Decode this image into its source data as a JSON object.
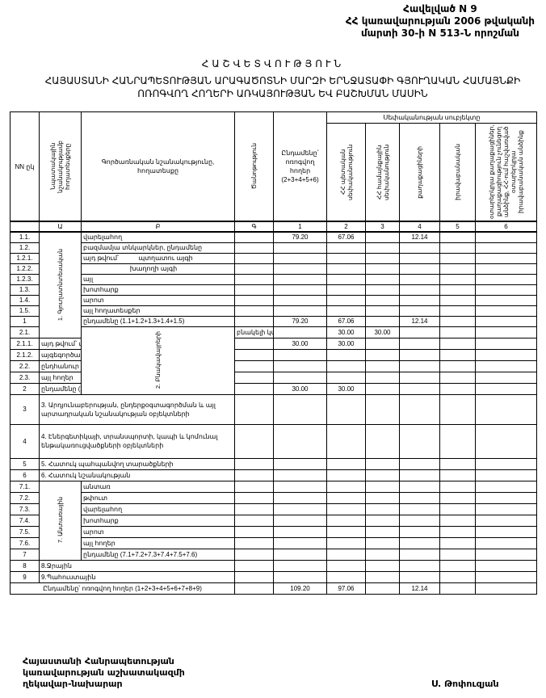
{
  "annex": {
    "line1": "Հավելված N 9",
    "line2": "ՀՀ կառավարության 2006 թվականի",
    "line3": "մարտի 30-ի N 513-Ն որոշման"
  },
  "title": "ՀԱՇՎԵՏՎՈՒԹՅՈՒՆ",
  "subtitle_line1": "ՀԱՅԱՍՏԱՆԻ ՀԱՆՐԱՊԵՏՈՒԹՅԱՆ ԱՐԱԳԱԾՈՏՆԻ ՄԱՐԶԻ ԵՐՆՋԱՏԱՓԻ ԳՅՈՒՂԱԿԱՆ ՀԱՄԱՅՆՔԻ",
  "subtitle_line2": "ՈՌՈԳՎՈՂ ՀՈՂԵՐԻ ԱՌԿԱՅՈՒԹՅԱՆ ԵՎ ԲԱՇԽՄԱՆ ՄԱՍԻՆ",
  "table": {
    "headers": {
      "nn": "NN ըկ",
      "purpose": "Նպատակային նշանակությամբ հողատեսքերը",
      "function": "Գործառնական նշանակությունը, հողատեսքը",
      "note": "Ծանոթություն",
      "total": "Ընդամենը՝ ոռոգվող հողեր (2+3+4+5+6)",
      "ownership": "Սեփականության սուբյեկտը",
      "c2": "ՀՀ պետական սեփականություն",
      "c3": "ՀՀ համայնքային սեփականություն",
      "c4": "քաղաքացիների",
      "c5": "իրավաբանական",
      "c6": "օտարերկրյա քաղաքացիներ, քաղաքացիություն չունեցող անձինք, ՀՀ-ում հաշվառված օտարերկրյա իրավաբանական անձինք"
    },
    "codes": [
      "",
      "Ա",
      "Բ",
      "Գ",
      "1",
      "2",
      "3",
      "4",
      "5",
      "6"
    ],
    "groups": {
      "g1": "1. Գյուղատնտեսական",
      "g2": "2. Բնակավայրերի",
      "g7": "7. Անտառային"
    },
    "rows": [
      {
        "num": "1.1.",
        "group": "g1",
        "span": 10,
        "label": "վարելահող",
        "v": [
          "79.20",
          "67.06",
          "",
          "12.14",
          "",
          ""
        ]
      },
      {
        "num": "1.2.",
        "label": "բազմամյա տնկարկներ, ընդամենը",
        "v": [
          "",
          "",
          "",
          "",
          "",
          ""
        ]
      },
      {
        "num": "1.2.1.",
        "label": "այդ թվում՝           պտղատու այգի",
        "v": [
          "",
          "",
          "",
          "",
          "",
          ""
        ]
      },
      {
        "num": "1.2.2.",
        "label": "                          խաղողի այգի",
        "v": [
          "",
          "",
          "",
          "",
          "",
          ""
        ]
      },
      {
        "num": "1.2.3.",
        "label": "այլ",
        "v": [
          "",
          "",
          "",
          "",
          "",
          ""
        ]
      },
      {
        "num": "1.3.",
        "label": "խոտհարք",
        "v": [
          "",
          "",
          "",
          "",
          "",
          ""
        ]
      },
      {
        "num": "1.4.",
        "label": "արոտ",
        "v": [
          "",
          "",
          "",
          "",
          "",
          ""
        ]
      },
      {
        "num": "1.5.",
        "label": "այլ հողատեսքեր",
        "v": [
          "",
          "",
          "",
          "",
          "",
          ""
        ]
      },
      {
        "num": "1",
        "label": "ընդամենը (1.1+1.2+1.3+1.4+1.5)",
        "v": [
          "79.20",
          "67.06",
          "",
          "12.14",
          "",
          ""
        ]
      },
      {
        "num": "2.1.",
        "group": "g2",
        "span": 6,
        "label": "բնակելի կառուցապատման",
        "v": [
          "30.00",
          "30.00",
          "",
          "",
          "",
          ""
        ]
      },
      {
        "num": "2.1.1.",
        "label": "այդ թվում՝ տնամերձ հողեր",
        "v": [
          "30.00",
          "30.00",
          "",
          "",
          "",
          ""
        ]
      },
      {
        "num": "2.1.2.",
        "label": "այգեգործական (ամառանոցային)",
        "v": [
          "",
          "",
          "",
          "",
          "",
          ""
        ]
      },
      {
        "num": "2.2.",
        "label": "ընդհանուր օգտագործման",
        "v": [
          "",
          "",
          "",
          "",
          "",
          ""
        ]
      },
      {
        "num": "2.3.",
        "label": "այլ հողեր",
        "v": [
          "",
          "",
          "",
          "",
          "",
          ""
        ]
      },
      {
        "num": "2",
        "label": "ընդամենը (2.1+2.2+2.3)",
        "v": [
          "30.00",
          "30.00",
          "",
          "",
          "",
          ""
        ]
      },
      {
        "num": "3",
        "full": true,
        "tall": 37,
        "label": "3. Արդյունաբերության, ընդերքօգտագործման և այլ արտադրական նշանակության օբյեկտների",
        "v": [
          "",
          "",
          "",
          "",
          "",
          ""
        ]
      },
      {
        "num": "4",
        "full": true,
        "tall": 42,
        "label": "4. Էներգետիկայի, տրանսպորտի, կապի և կոմունալ ենթակառուցվածքների օբյեկտների",
        "v": [
          "",
          "",
          "",
          "",
          "",
          ""
        ]
      },
      {
        "num": "5",
        "full": true,
        "label": "5. Հատուկ պահպանվող տարածքների",
        "v": [
          "",
          "",
          "",
          "",
          "",
          ""
        ]
      },
      {
        "num": "6",
        "full": true,
        "label": "6. Հատուկ նշանակության",
        "v": [
          "",
          "",
          "",
          "",
          "",
          ""
        ]
      },
      {
        "num": "7.1.",
        "group": "g7",
        "span": 7,
        "label": "անտառ",
        "v": [
          "",
          "",
          "",
          "",
          "",
          ""
        ]
      },
      {
        "num": "7.2.",
        "label": "թփուտ",
        "v": [
          "",
          "",
          "",
          "",
          "",
          ""
        ]
      },
      {
        "num": "7.3.",
        "label": "վարելահող",
        "v": [
          "",
          "",
          "",
          "",
          "",
          ""
        ]
      },
      {
        "num": "7.4.",
        "label": "խոտհարք",
        "v": [
          "",
          "",
          "",
          "",
          "",
          ""
        ]
      },
      {
        "num": "7.5.",
        "label": "արոտ",
        "v": [
          "",
          "",
          "",
          "",
          "",
          ""
        ]
      },
      {
        "num": "7.6.",
        "label": "այլ հողեր",
        "v": [
          "",
          "",
          "",
          "",
          "",
          ""
        ]
      },
      {
        "num": "7",
        "label": "ընդամենը (7.1+7.2+7.3+7.4+7.5+7.6)",
        "v": [
          "",
          "",
          "",
          "",
          "",
          ""
        ]
      },
      {
        "num": "8",
        "full": true,
        "label": "8.Ջրային",
        "v": [
          "",
          "",
          "",
          "",
          "",
          ""
        ]
      },
      {
        "num": "9",
        "full": true,
        "label": "9.Պահուստային",
        "v": [
          "",
          "",
          "",
          "",
          "",
          ""
        ]
      },
      {
        "num": "",
        "grand": true,
        "label": "Ընդամենը՝ ոռոգվող հողեր (1+2+3+4+5+6+7+8+9)",
        "v": [
          "109.20",
          "97.06",
          "",
          "12.14",
          "",
          ""
        ]
      }
    ]
  },
  "signature": {
    "line1": "Հայաստանի Հանրապետության",
    "line2": "կառավարության աշխատակազմի",
    "line3": "ղեկավար-նախարար",
    "name": "Ս. Թոփուզյան"
  }
}
